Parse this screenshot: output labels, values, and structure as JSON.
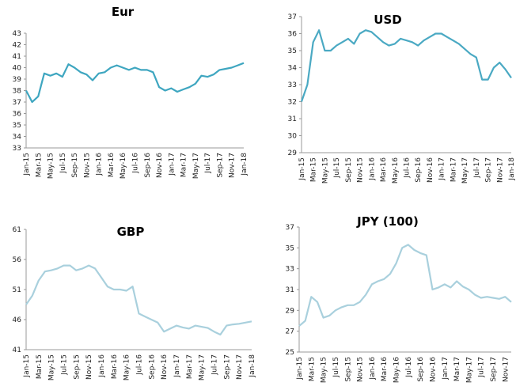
{
  "chart_data": [
    {
      "type": "line",
      "title": "Eur",
      "color": "#3ea6c0",
      "categories": [
        "Jan-15",
        null,
        "Mar-15",
        null,
        "May-15",
        null,
        "Jul-15",
        null,
        "Sep-15",
        null,
        "Nov-15",
        null,
        "Jan-16",
        null,
        "Mar-16",
        null,
        "May-16",
        null,
        "Jul-16",
        null,
        "Sep-16",
        null,
        "Nov-16",
        null,
        "Jan-17",
        null,
        "Mar-17",
        null,
        "May-17",
        null,
        "Jul-17",
        null,
        "Sep-17",
        null,
        "Nov-17",
        null,
        "Jan-18"
      ],
      "values": [
        38.0,
        37.0,
        37.5,
        39.5,
        39.3,
        39.5,
        39.2,
        40.3,
        40.0,
        39.6,
        39.4,
        38.9,
        39.5,
        39.6,
        40.0,
        40.2,
        40.0,
        39.8,
        40.0,
        39.8,
        39.8,
        39.6,
        38.3,
        38.0,
        38.2,
        37.9,
        38.1,
        38.3,
        38.6,
        39.3,
        39.2,
        39.4,
        39.8,
        39.9,
        40.0,
        40.2,
        40.4
      ],
      "ylim": [
        33,
        43
      ],
      "yticks": [
        33,
        34,
        35,
        36,
        37,
        38,
        39,
        40,
        41,
        42,
        43
      ]
    },
    {
      "type": "line",
      "title": "USD",
      "color": "#4aa9c3",
      "categories": [
        "Jan-15",
        null,
        "Mar-15",
        null,
        "May-15",
        null,
        "Jul-15",
        null,
        "Sep-15",
        null,
        "Nov-15",
        null,
        "Jan-16",
        null,
        "Mar-16",
        null,
        "May-16",
        null,
        "Jul-16",
        null,
        "Sep-16",
        null,
        "Nov-16",
        null,
        "Jan-17",
        null,
        "Mar-17",
        null,
        "May-17",
        null,
        "Jul-17",
        null,
        "Sep-17",
        null,
        "Nov-17",
        null,
        "Jan-18"
      ],
      "values": [
        32.0,
        33.0,
        35.5,
        36.2,
        35.0,
        35.0,
        35.3,
        35.5,
        35.7,
        35.4,
        36.0,
        36.2,
        36.1,
        35.8,
        35.5,
        35.3,
        35.4,
        35.7,
        35.6,
        35.5,
        35.3,
        35.6,
        35.8,
        36.0,
        36.0,
        35.8,
        35.6,
        35.4,
        35.1,
        34.8,
        34.6,
        33.3,
        33.3,
        34.0,
        34.3,
        33.9,
        33.4
      ],
      "ylim": [
        29,
        37
      ],
      "yticks": [
        29,
        30,
        31,
        32,
        33,
        34,
        35,
        36,
        37
      ]
    },
    {
      "type": "line",
      "title": "GBP",
      "color": "#a9d0dd",
      "categories": [
        "Jan-15",
        null,
        "Mar-15",
        null,
        "May-15",
        null,
        "Jul-15",
        null,
        "Sep-15",
        null,
        "Nov-15",
        null,
        "Jan-16",
        null,
        "Mar-16",
        null,
        "May-16",
        null,
        "Jul-16",
        null,
        "Sep-16",
        null,
        "Nov-16",
        null,
        "Jan-17",
        null,
        "Mar-17",
        null,
        "May-17",
        null,
        "Jul-17",
        null,
        "Sep-17",
        null,
        "Nov-17",
        null,
        "Jan-18"
      ],
      "values": [
        48.5,
        50,
        52.5,
        54,
        54.2,
        54.5,
        55,
        55,
        54.2,
        54.5,
        55,
        54.5,
        53,
        51.5,
        51,
        51,
        50.8,
        51.5,
        47,
        46.5,
        46,
        45.5,
        44,
        44.5,
        45,
        44.7,
        44.5,
        45,
        44.8,
        44.6,
        44,
        43.5,
        45,
        45.2,
        45.3,
        45.5,
        45.7
      ],
      "ylim": [
        41,
        61
      ],
      "yticks": [
        41,
        46,
        51,
        56,
        61
      ]
    },
    {
      "type": "line",
      "title": "JPY (100)",
      "color": "#a9d0dd",
      "categories": [
        "Jan-15",
        null,
        "Mar-15",
        null,
        "May-15",
        null,
        "Jul-15",
        null,
        "Sep-15",
        null,
        "Nov-15",
        null,
        "Jan-16",
        null,
        "Mar-16",
        null,
        "May-16",
        null,
        "Jul-16",
        null,
        "Sep-16",
        null,
        "Nov-16",
        null,
        "Jan-17",
        null,
        "Mar-17",
        null,
        "May-17",
        null,
        "Jul-17",
        null,
        "Sep-17",
        null,
        "Nov-17",
        null
      ],
      "values": [
        27.5,
        28,
        30.3,
        29.8,
        28.3,
        28.5,
        29,
        29.3,
        29.5,
        29.5,
        29.8,
        30.5,
        31.5,
        31.8,
        32,
        32.5,
        33.5,
        35,
        35.3,
        34.8,
        34.5,
        34.3,
        31,
        31.2,
        31.5,
        31.2,
        31.8,
        31.3,
        31,
        30.5,
        30.2,
        30.3,
        30.2,
        30.1,
        30.3,
        29.8
      ],
      "ylim": [
        25,
        37
      ],
      "yticks": [
        25,
        27,
        29,
        31,
        33,
        35,
        37
      ]
    }
  ]
}
